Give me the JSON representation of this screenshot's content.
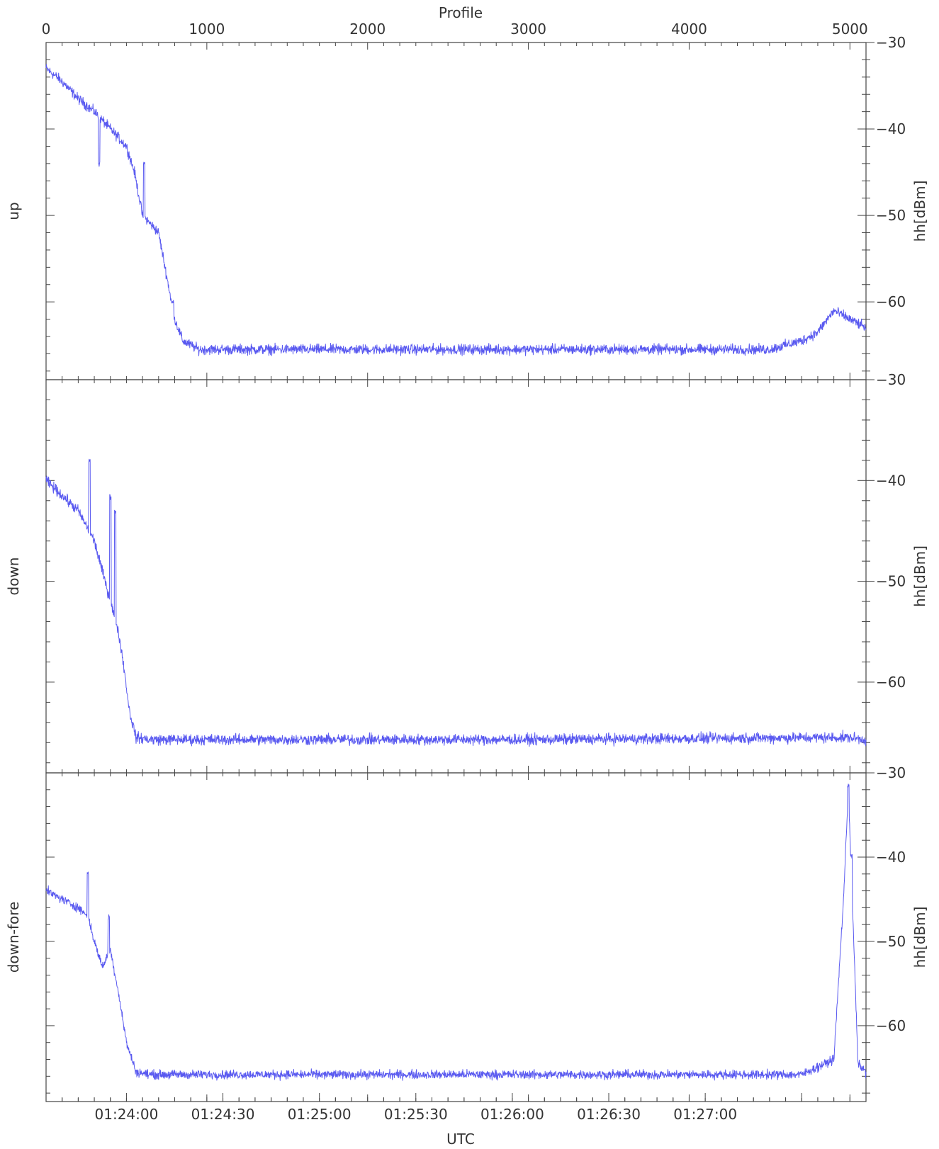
{
  "chart_data": {
    "type": "line",
    "top_axis": {
      "label": "Profile",
      "range": [
        0,
        5100
      ],
      "ticks": [
        0,
        1000,
        2000,
        3000,
        4000,
        5000
      ]
    },
    "bottom_axis": {
      "label": "UTC",
      "range_seconds_from_01_23_35": [
        0,
        255
      ],
      "ticks": [
        "01:24:00",
        "01:24:30",
        "01:25:00",
        "01:25:30",
        "01:26:00",
        "01:26:30",
        "01:27:00"
      ]
    },
    "series_color": "#5a5af0",
    "panels": [
      {
        "title": "up",
        "ylabel": "hh[dBm]",
        "ylim": [
          -69,
          -30
        ],
        "yticks": [
          "-30",
          "-40",
          "-50",
          "-60"
        ],
        "noise": 0.5,
        "spikes": [
          [
            330,
            -44
          ],
          [
            610,
            -44
          ],
          [
            790,
            -60
          ]
        ],
        "profile_points": [
          [
            0,
            -33
          ],
          [
            100,
            -34.5
          ],
          [
            200,
            -36.5
          ],
          [
            300,
            -38
          ],
          [
            400,
            -40
          ],
          [
            500,
            -42
          ],
          [
            550,
            -45
          ],
          [
            600,
            -50
          ],
          [
            650,
            -51
          ],
          [
            700,
            -52
          ],
          [
            750,
            -57
          ],
          [
            800,
            -62
          ],
          [
            850,
            -64.5
          ],
          [
            950,
            -65.5
          ],
          [
            1200,
            -65.5
          ],
          [
            4500,
            -65.5
          ],
          [
            4700,
            -64.5
          ],
          [
            4800,
            -63.5
          ],
          [
            4900,
            -61
          ],
          [
            5000,
            -62
          ],
          [
            5100,
            -63
          ]
        ]
      },
      {
        "title": "down",
        "ylabel": "hh[dBm]",
        "ylim": [
          -69,
          -30
        ],
        "yticks": [
          "-30",
          "-40",
          "-50",
          "-60"
        ],
        "noise": 0.45,
        "spikes": [
          [
            270,
            -38
          ],
          [
            400,
            -41.5
          ],
          [
            430,
            -43
          ]
        ],
        "profile_points": [
          [
            0,
            -40
          ],
          [
            100,
            -41.5
          ],
          [
            200,
            -43
          ],
          [
            300,
            -46
          ],
          [
            350,
            -49
          ],
          [
            400,
            -52
          ],
          [
            450,
            -55
          ],
          [
            480,
            -58
          ],
          [
            520,
            -63
          ],
          [
            560,
            -65.5
          ],
          [
            650,
            -65.7
          ],
          [
            3000,
            -65.7
          ],
          [
            4800,
            -65.5
          ],
          [
            5000,
            -65.5
          ],
          [
            5100,
            -65.7
          ]
        ]
      },
      {
        "title": "down-fore",
        "ylabel": "hh[dBm]",
        "ylim": [
          -69,
          -30
        ],
        "yticks": [
          "-30",
          "-40",
          "-50",
          "-60"
        ],
        "noise": 0.45,
        "spikes": [
          [
            260,
            -42
          ],
          [
            390,
            -47
          ],
          [
            4990,
            -31.5
          ],
          [
            5010,
            -40
          ]
        ],
        "profile_points": [
          [
            0,
            -44
          ],
          [
            100,
            -45
          ],
          [
            200,
            -46
          ],
          [
            260,
            -47
          ],
          [
            300,
            -50
          ],
          [
            350,
            -53
          ],
          [
            400,
            -51
          ],
          [
            450,
            -56
          ],
          [
            500,
            -62
          ],
          [
            560,
            -65.5
          ],
          [
            650,
            -65.8
          ],
          [
            4700,
            -65.8
          ],
          [
            4900,
            -64
          ],
          [
            4960,
            -45
          ],
          [
            4990,
            -32
          ],
          [
            5020,
            -48
          ],
          [
            5050,
            -64.5
          ],
          [
            5100,
            -65.5
          ]
        ]
      }
    ]
  }
}
